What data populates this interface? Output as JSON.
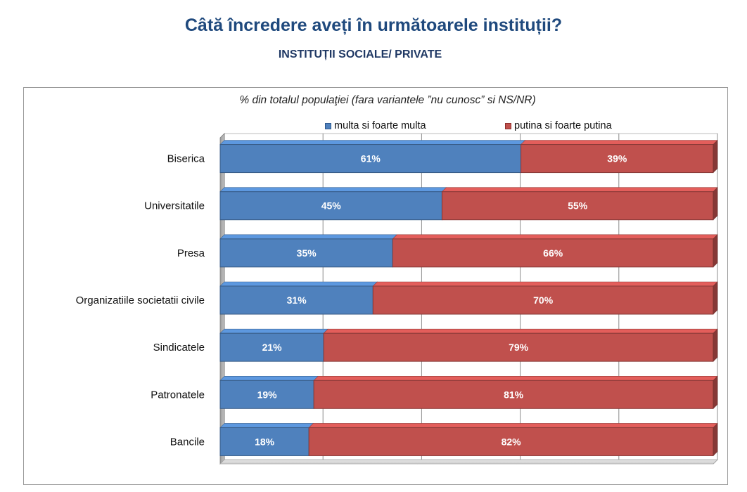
{
  "header": {
    "title": "Câtă încredere aveți în următoarele instituții?",
    "subtitle": "INSTITUȚII SOCIALE/ PRIVATE"
  },
  "chart_data": {
    "type": "bar",
    "orientation": "horizontal",
    "stacked": true,
    "note": "% din totalul populaţiei (fara variantele ”nu cunosc” si NS/NR)",
    "categories": [
      "Biserica",
      "Universitatile",
      "Presa",
      "Organizatiile societatii civile",
      "Sindicatele",
      "Patronatele",
      "Bancile"
    ],
    "series": [
      {
        "name": "multa si foarte multa",
        "color": "#4F81BD",
        "values": [
          61,
          45,
          35,
          31,
          21,
          19,
          18
        ],
        "labels": [
          "61%",
          "45%",
          "35%",
          "31%",
          "21%",
          "19%",
          "18%"
        ]
      },
      {
        "name": "putina si foarte putina",
        "color": "#C0504D",
        "values": [
          39,
          55,
          66,
          70,
          79,
          81,
          82
        ],
        "labels": [
          "39%",
          "55%",
          "66%",
          "70%",
          "79%",
          "81%",
          "82%"
        ]
      }
    ],
    "xlim": [
      0,
      100
    ],
    "grid": true,
    "legend": "top",
    "three_d": true
  }
}
